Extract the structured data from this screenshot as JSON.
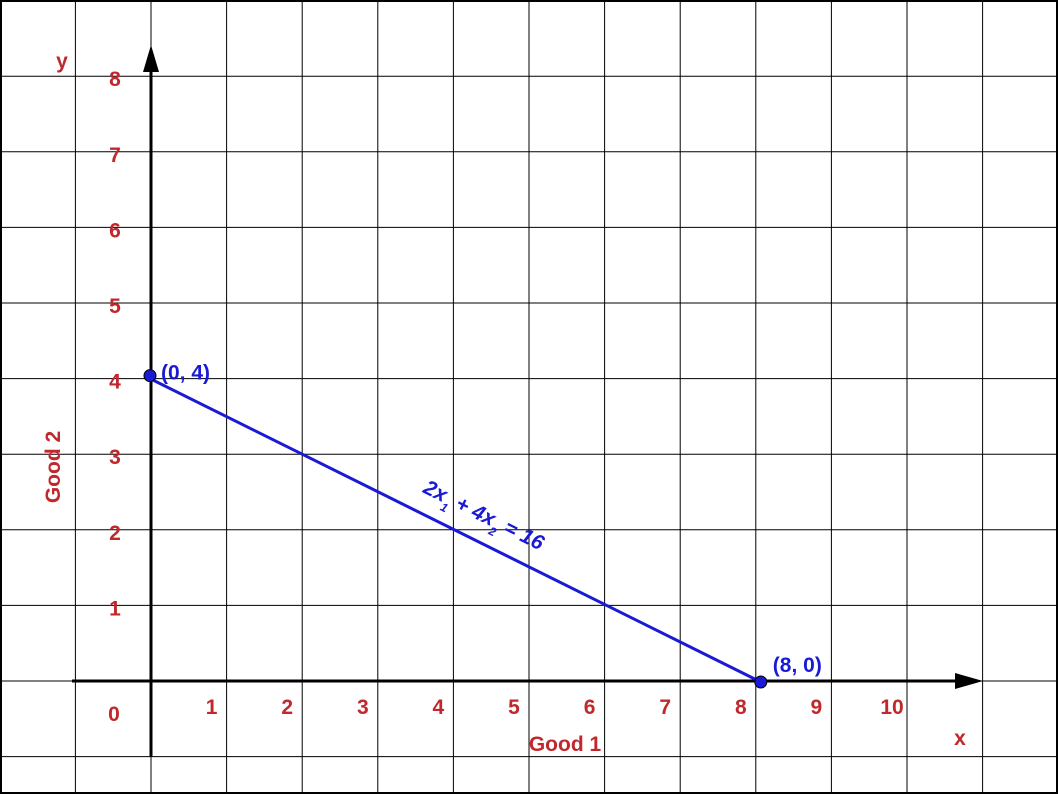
{
  "chart_data": {
    "type": "line",
    "title": "",
    "xlabel": "Good 1",
    "ylabel": "Good 2",
    "x_axis_letter": "x",
    "y_axis_letter": "y",
    "origin_label": "0",
    "xlim": [
      -1,
      11
    ],
    "ylim": [
      -1,
      8.5
    ],
    "grid": true,
    "x_ticks": [
      "1",
      "2",
      "3",
      "4",
      "5",
      "6",
      "7",
      "8",
      "9",
      "10"
    ],
    "y_ticks": [
      "1",
      "2",
      "3",
      "4",
      "5",
      "6",
      "7",
      "8"
    ],
    "series": [
      {
        "equation_parts": [
          "2x",
          "1",
          " + 4x",
          "2",
          " = 16"
        ],
        "color": "#1a1ad6",
        "points": [
          {
            "x": 0,
            "y": 4,
            "label": "(0, 4)"
          },
          {
            "x": 8,
            "y": 0,
            "label": "(8, 0)"
          }
        ]
      }
    ],
    "colors": {
      "grid": "#000000",
      "axis": "#000000",
      "labels": "#c0282d",
      "series": "#1a1ad6"
    }
  }
}
